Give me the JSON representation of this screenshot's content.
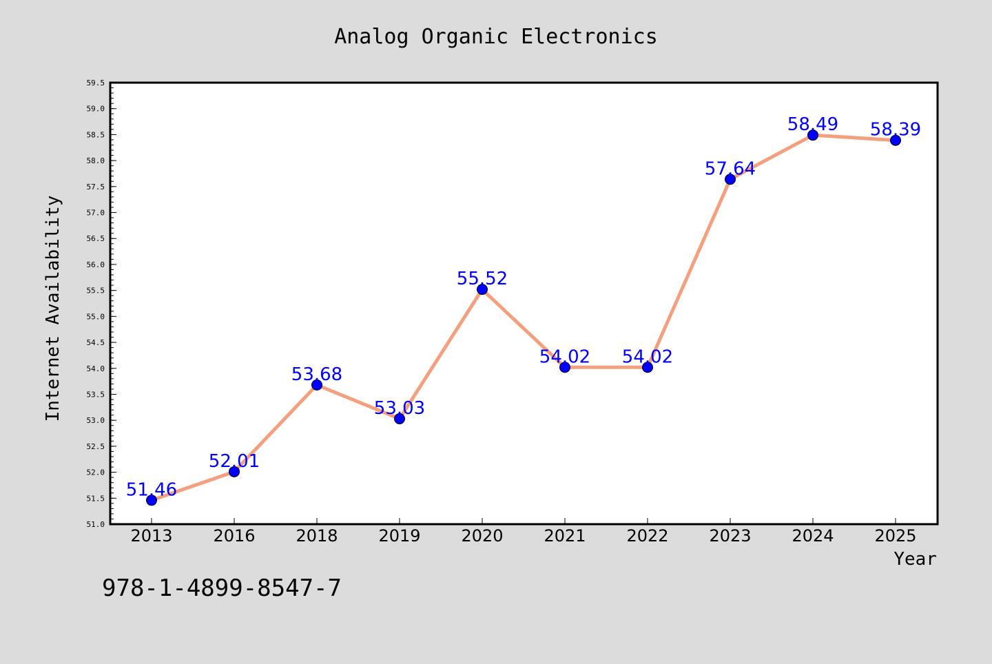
{
  "chart_data": {
    "type": "line",
    "title": "Analog Organic Electronics",
    "xlabel": "Year",
    "ylabel": "Internet Availability",
    "categories": [
      "2013",
      "2016",
      "2018",
      "2019",
      "2020",
      "2021",
      "2022",
      "2023",
      "2024",
      "2025"
    ],
    "series": [
      {
        "values": [
          51.46,
          52.01,
          53.68,
          53.03,
          55.52,
          54.02,
          54.02,
          57.64,
          58.49,
          58.39
        ],
        "labels": [
          "51.46",
          "52.01",
          "53.68",
          "53.03",
          "55.52",
          "54.02",
          "54.02",
          "57.64",
          "58.49",
          "58.39"
        ],
        "line_color": "#f4a07f",
        "marker_color": "#0000ff"
      }
    ],
    "ylim": [
      51.0,
      59.5
    ],
    "yticks": [
      "51.0",
      "51.5",
      "52.0",
      "52.5",
      "53.0",
      "53.5",
      "54.0",
      "54.5",
      "55.0",
      "55.5",
      "56.0",
      "56.5",
      "57.0",
      "57.5",
      "58.0",
      "58.5",
      "59.0",
      "59.5"
    ],
    "grid": false,
    "background_color": "#dcdcdc",
    "plot_background": "#ffffff"
  },
  "footer": {
    "isbn": "978-1-4899-8547-7"
  }
}
